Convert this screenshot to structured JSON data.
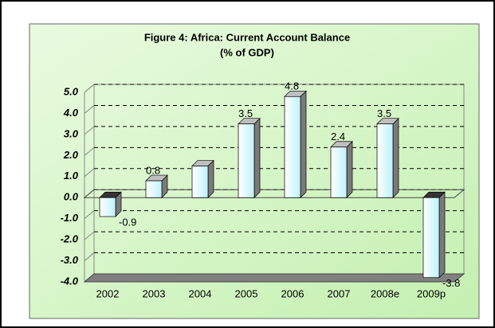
{
  "chart_data": {
    "type": "bar3d",
    "title": "Figure 4:  Africa: Current Account Balance",
    "subtitle": "(% of GDP)",
    "categories": [
      "2002",
      "2003",
      "2004",
      "2005",
      "2006",
      "2007",
      "2008e",
      "2009p"
    ],
    "values": [
      -0.9,
      0.8,
      1.5,
      3.5,
      4.8,
      2.4,
      3.5,
      -3.8
    ],
    "value_labels": [
      "-0.9",
      "0.8",
      null,
      "3.5",
      "4.8",
      "2.4",
      "3.5",
      "-3.8"
    ],
    "ylim": [
      -4,
      5
    ],
    "yticks": [
      {
        "value": -4,
        "label": "-4.0"
      },
      {
        "value": -3,
        "label": "-3.0"
      },
      {
        "value": -2,
        "label": "-2.0"
      },
      {
        "value": -1,
        "label": "-1.0"
      },
      {
        "value": 0,
        "label": "0.0"
      },
      {
        "value": 1,
        "label": "1.0"
      },
      {
        "value": 2,
        "label": "2.0"
      },
      {
        "value": 3,
        "label": "3.0"
      },
      {
        "value": 4,
        "label": "4.0"
      },
      {
        "value": 5,
        "label": "5.0"
      }
    ],
    "grid": true,
    "color": "#d8f8fc"
  }
}
